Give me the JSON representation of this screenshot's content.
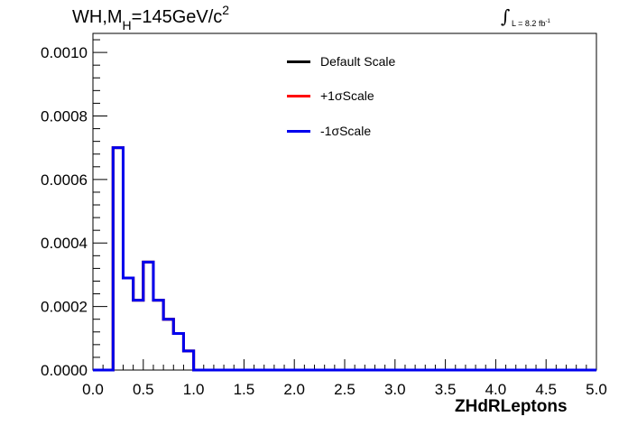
{
  "title": {
    "main": "WH,M",
    "subscript": "H",
    "rest": "=145GeV/c",
    "superscript": "2"
  },
  "luminosity": {
    "symbol": "∫",
    "text": "L = 8.2 fb",
    "superscript": "-1"
  },
  "chart_data": {
    "type": "line",
    "xlabel": "ZHdRLeptons",
    "ylabel": "",
    "xlim": [
      0.0,
      5.0
    ],
    "ylim": [
      0.0,
      0.00106
    ],
    "x_ticks": [
      "0.0",
      "0.5",
      "1.0",
      "1.5",
      "2.0",
      "2.5",
      "3.0",
      "3.5",
      "4.0",
      "4.5",
      "5.0"
    ],
    "y_ticks": [
      "0.0000",
      "0.0002",
      "0.0004",
      "0.0006",
      "0.0008",
      "0.0010"
    ],
    "grid": false,
    "legend_position": "top-center",
    "bin_edges": [
      0.0,
      0.1,
      0.2,
      0.3,
      0.4,
      0.5,
      0.6,
      0.7,
      0.8,
      0.9,
      1.0,
      1.1,
      1.2,
      1.3,
      1.4,
      1.5,
      1.6,
      1.7,
      1.8,
      1.9,
      2.0,
      2.1,
      2.2,
      2.3,
      2.4,
      2.5,
      2.6,
      2.7,
      2.8,
      2.9,
      3.0,
      3.1,
      3.2,
      3.3,
      3.4,
      3.5,
      3.6,
      3.7,
      3.8,
      3.9,
      4.0,
      4.1,
      4.2,
      4.3,
      4.4,
      4.5,
      4.6,
      4.7,
      4.8,
      4.9,
      5.0
    ],
    "series": [
      {
        "name": "Default Scale",
        "color": "#000000",
        "values": [
          0,
          0,
          0.0007,
          0.00029,
          0.00022,
          0.00034,
          0.00022,
          0.00016,
          0.000115,
          6e-05,
          0,
          0,
          0,
          0,
          0,
          0,
          0,
          0,
          0,
          0,
          0,
          0,
          0,
          0,
          0,
          0,
          0,
          0,
          0,
          0,
          0,
          0,
          0,
          0,
          0,
          0,
          0,
          0,
          0,
          0,
          0,
          0,
          0,
          0,
          0,
          0,
          0,
          0,
          0,
          0
        ]
      },
      {
        "name": "+1σScale",
        "color": "#ff0000",
        "values": [
          0,
          0,
          0.0007,
          0.00029,
          0.00022,
          0.00034,
          0.00022,
          0.00016,
          0.000115,
          6e-05,
          0,
          0,
          0,
          0,
          0,
          0,
          0,
          0,
          0,
          0,
          0,
          0,
          0,
          0,
          0,
          0,
          0,
          0,
          0,
          0,
          0,
          0,
          0,
          0,
          0,
          0,
          0,
          0,
          0,
          0,
          0,
          0,
          0,
          0,
          0,
          0,
          0,
          0,
          0,
          0
        ]
      },
      {
        "name": "-1σScale",
        "color": "#0000ee",
        "values": [
          0,
          0,
          0.0007,
          0.00029,
          0.00022,
          0.00034,
          0.00022,
          0.00016,
          0.000115,
          6e-05,
          0,
          0,
          0,
          0,
          0,
          0,
          0,
          0,
          0,
          0,
          0,
          0,
          0,
          0,
          0,
          0,
          0,
          0,
          0,
          0,
          0,
          0,
          0,
          0,
          0,
          0,
          0,
          0,
          0,
          0,
          0,
          0,
          0,
          0,
          0,
          0,
          0,
          0,
          0,
          0
        ]
      }
    ]
  }
}
